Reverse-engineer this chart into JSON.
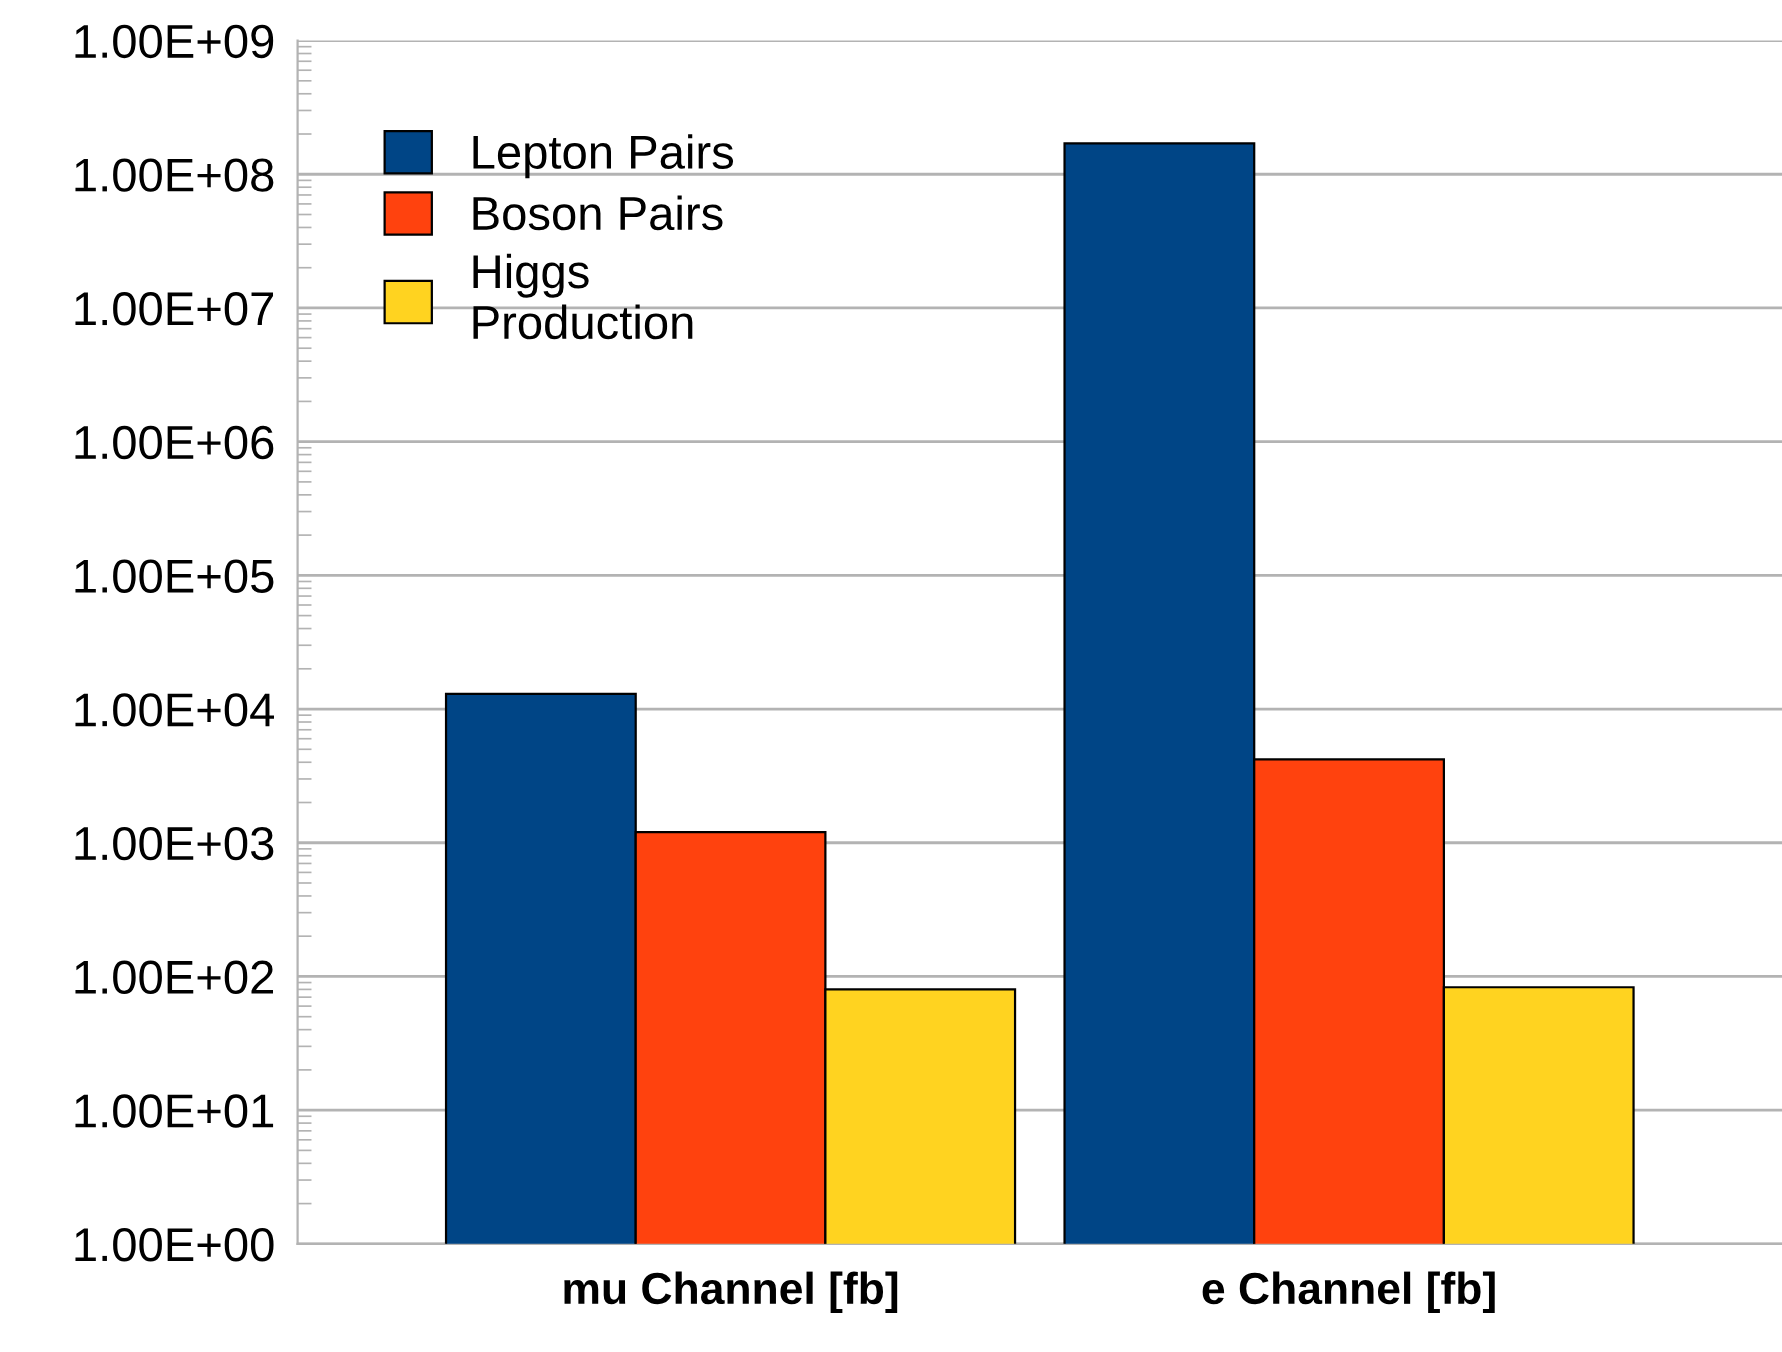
{
  "chart_data": {
    "type": "bar",
    "categories": [
      "mu Channel [fb]",
      "e Channel [fb]"
    ],
    "series": [
      {
        "name": "Lepton Pairs",
        "color": "#004586",
        "values": [
          13000,
          170000000
        ]
      },
      {
        "name": "Boson Pairs",
        "color": "#ff420e",
        "values": [
          1200,
          4200
        ]
      },
      {
        "name": "Higgs\nProduction",
        "color": "#ffd320",
        "values": [
          80,
          83
        ]
      }
    ],
    "log": "y",
    "ylim": [
      1,
      1000000000
    ],
    "yticks": [
      {
        "value": 1,
        "label": "1.00E+00"
      },
      {
        "value": 10,
        "label": "1.00E+01"
      },
      {
        "value": 100,
        "label": "1.00E+02"
      },
      {
        "value": 1000,
        "label": "1.00E+03"
      },
      {
        "value": 10000,
        "label": "1.00E+04"
      },
      {
        "value": 100000,
        "label": "1.00E+05"
      },
      {
        "value": 1000000,
        "label": "1.00E+06"
      },
      {
        "value": 10000000,
        "label": "1.00E+07"
      },
      {
        "value": 100000000,
        "label": "1.00E+08"
      },
      {
        "value": 1000000000,
        "label": "1.00E+09"
      }
    ],
    "grid": "y",
    "legend": "top left"
  }
}
